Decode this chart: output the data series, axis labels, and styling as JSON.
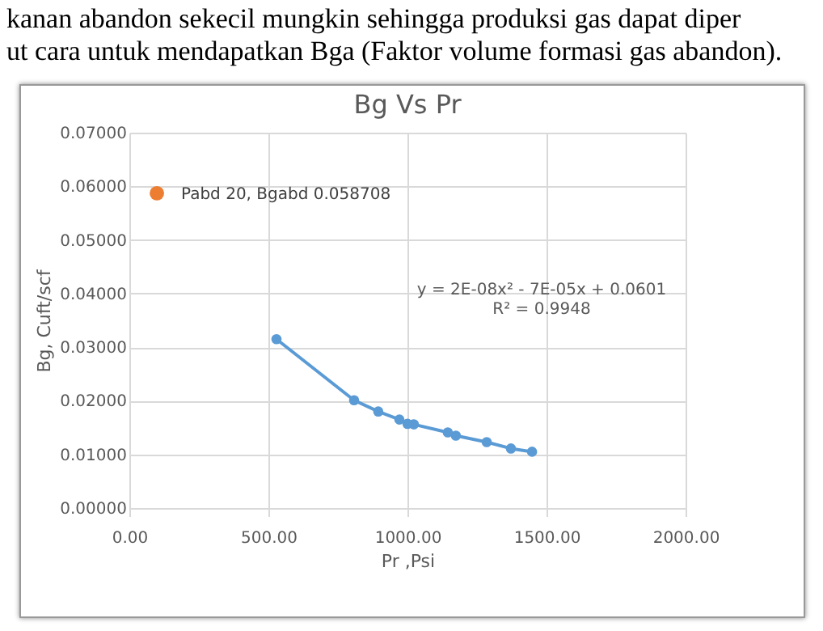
{
  "chart_data": {
    "type": "line",
    "title": "Bg Vs Pr",
    "xlabel": "Pr ,Psi",
    "ylabel": "Bg, Cuft/scf",
    "annotations": [
      "kanan abandon sekecil mungkin sehingga produksi gas dapat diper",
      "ut cara untuk mendapatkan Bga (Faktor volume formasi gas abandon).",
      "Pabd 20, Bgabd 0.058708",
      "y = 2E-08x² - 7E-05x + 0.0601",
      "R² = 0.9948"
    ],
    "series": [
      {
        "color": "#5b9bd5",
        "x": [
          529,
          808,
          895,
          971,
          1000,
          1023,
          1145,
          1174,
          1285,
          1372,
          1448
        ],
        "values": [
          0.0315,
          0.0201,
          0.018,
          0.0165,
          0.0157,
          0.0156,
          0.0141,
          0.0135,
          0.0123,
          0.0111,
          0.0105
        ]
      },
      {
        "type": "scatter",
        "color": "#ed7d31",
        "x": [
          99
        ],
        "values": [
          0.058708
        ]
      }
    ],
    "xlim": [
      0,
      2000
    ],
    "xticks": [
      {
        "value": 0,
        "label": "0.00"
      },
      {
        "value": 500,
        "label": "500.00"
      },
      {
        "value": 1000,
        "label": "1000.00"
      },
      {
        "value": 1500,
        "label": "1500.00"
      },
      {
        "value": 2000,
        "label": "2000.00"
      }
    ],
    "ylim": [
      0,
      0.07
    ],
    "yticks": [
      {
        "value": 0,
        "label": "0.00000"
      },
      {
        "value": 0.01,
        "label": "0.01000"
      },
      {
        "value": 0.02,
        "label": "0.02000"
      },
      {
        "value": 0.03,
        "label": "0.03000"
      },
      {
        "value": 0.04,
        "label": "0.04000"
      },
      {
        "value": 0.05,
        "label": "0.05000"
      },
      {
        "value": 0.06,
        "label": "0.06000"
      },
      {
        "value": 0.07,
        "label": "0.07000"
      }
    ],
    "grid": true,
    "marker": "circle"
  }
}
